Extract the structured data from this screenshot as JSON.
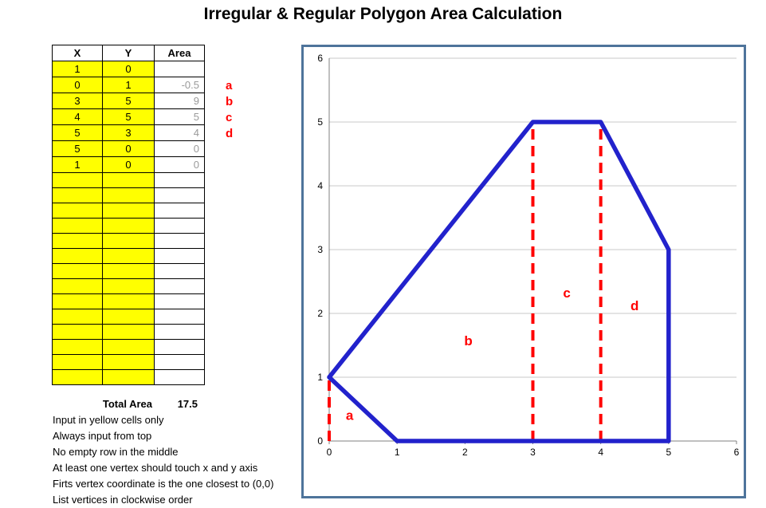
{
  "title": "Irregular & Regular Polygon Area Calculation",
  "table": {
    "headers": [
      "X",
      "Y",
      "Area"
    ],
    "rows": [
      {
        "x": "1",
        "y": "0",
        "area": ""
      },
      {
        "x": "0",
        "y": "1",
        "area": "-0.5"
      },
      {
        "x": "3",
        "y": "5",
        "area": "9"
      },
      {
        "x": "4",
        "y": "5",
        "area": "5"
      },
      {
        "x": "5",
        "y": "3",
        "area": "4"
      },
      {
        "x": "5",
        "y": "0",
        "area": "0"
      },
      {
        "x": "1",
        "y": "0",
        "area": "0"
      }
    ],
    "empty_row_count": 14,
    "total_label": "Total Area",
    "total_value": "17.5"
  },
  "area_labels": [
    {
      "letter": "a",
      "row_index": 2
    },
    {
      "letter": "b",
      "row_index": 3
    },
    {
      "letter": "c",
      "row_index": 4
    },
    {
      "letter": "d",
      "row_index": 5
    }
  ],
  "notes": [
    "Input in yellow cells only",
    "Always input from top",
    "No empty row in the middle",
    "At least one vertex should touch x and y axis",
    "Firts vertex coordinate is the one closest to (0,0)",
    "List vertices in clockwise order"
  ],
  "colors": {
    "input_cell": "#FFFF00",
    "polygon": "#2222CC",
    "dashed_red": "#FF0000",
    "chart_border": "#4E749B",
    "gridline": "#C9C9C9",
    "axis": "#808080",
    "area_text": "#9A9A9A"
  },
  "chart_data": {
    "type": "line",
    "title": "",
    "xlabel": "",
    "ylabel": "",
    "x_range": [
      0,
      6
    ],
    "y_range": [
      0,
      6
    ],
    "x_ticks": [
      0,
      1,
      2,
      3,
      4,
      5,
      6
    ],
    "y_ticks": [
      0,
      1,
      2,
      3,
      4,
      5,
      6
    ],
    "grid": "horizontal",
    "legend": "none",
    "polygon_vertices": [
      [
        1,
        0
      ],
      [
        0,
        1
      ],
      [
        3,
        5
      ],
      [
        4,
        5
      ],
      [
        5,
        3
      ],
      [
        5,
        0
      ],
      [
        1,
        0
      ]
    ],
    "divider_lines": [
      {
        "x": 0,
        "y_from": 0,
        "y_to": 1
      },
      {
        "x": 3,
        "y_from": 0,
        "y_to": 5
      },
      {
        "x": 4,
        "y_from": 0,
        "y_to": 5
      }
    ],
    "region_labels": [
      {
        "text": "a",
        "x": 0.3,
        "y": 0.33
      },
      {
        "text": "b",
        "x": 2.05,
        "y": 1.5
      },
      {
        "text": "c",
        "x": 3.5,
        "y": 2.25
      },
      {
        "text": "d",
        "x": 4.5,
        "y": 2.05
      }
    ]
  }
}
